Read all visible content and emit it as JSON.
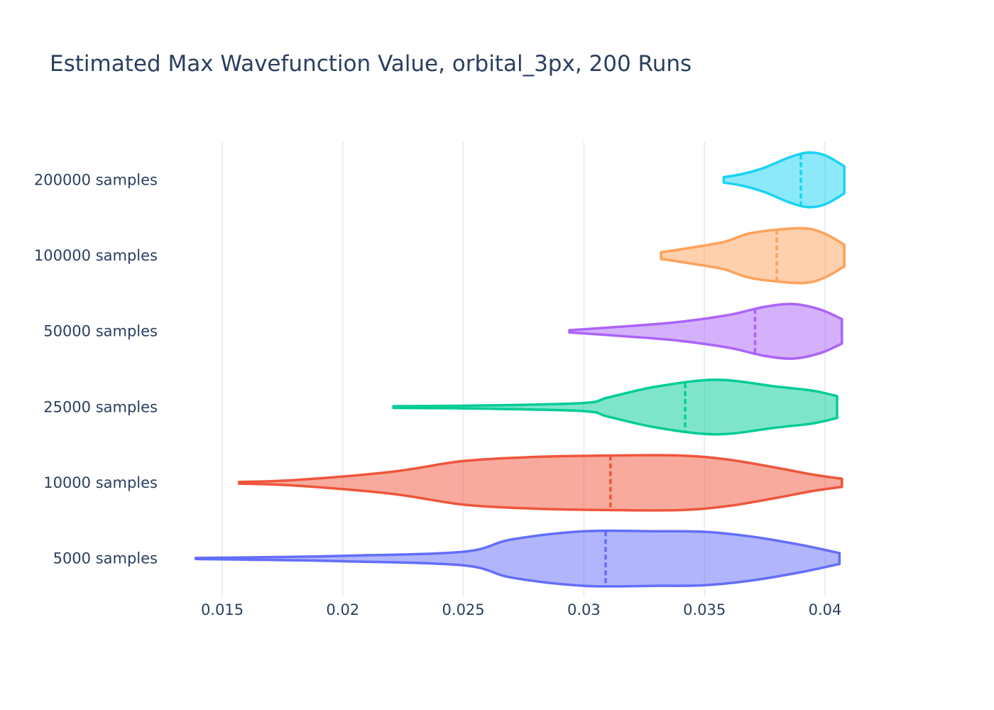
{
  "chart_data": {
    "type": "violin",
    "orientation": "horizontal",
    "title": "Estimated Max Wavefunction Value, orbital_3px, 200 Runs",
    "xlabel": "",
    "ylabel": "",
    "xlim": [
      0.0138,
      0.0415
    ],
    "x_ticks": [
      0.015,
      0.02,
      0.025,
      0.03,
      0.035,
      0.04
    ],
    "x_tick_labels": [
      "0.015",
      "0.02",
      "0.025",
      "0.03",
      "0.035",
      "0.04"
    ],
    "grid": true,
    "legend": "none",
    "categories": [
      "5000 samples",
      "10000 samples",
      "25000 samples",
      "50000 samples",
      "100000 samples",
      "200000 samples"
    ],
    "series": [
      {
        "category": "5000 samples",
        "color": "#636efa",
        "fill": "rgba(99,110,250,0.5)",
        "min": 0.0139,
        "max": 0.0406,
        "median": 0.0309,
        "profile_x": [
          0.0139,
          0.016,
          0.02,
          0.025,
          0.027,
          0.03,
          0.033,
          0.035,
          0.037,
          0.039,
          0.0406
        ],
        "profile_w": [
          0.02,
          0.04,
          0.1,
          0.25,
          0.7,
          1.0,
          1.0,
          0.98,
          0.8,
          0.5,
          0.2
        ]
      },
      {
        "category": "10000 samples",
        "color": "#ef553b",
        "fill": "rgba(239,85,59,0.5)",
        "min": 0.0157,
        "max": 0.0407,
        "median": 0.0311,
        "profile_x": [
          0.0157,
          0.018,
          0.022,
          0.025,
          0.028,
          0.031,
          0.034,
          0.036,
          0.038,
          0.0395,
          0.0407
        ],
        "profile_w": [
          0.03,
          0.1,
          0.4,
          0.8,
          0.95,
          1.0,
          1.0,
          0.85,
          0.55,
          0.3,
          0.15
        ]
      },
      {
        "category": "25000 samples",
        "color": "#00cc96",
        "fill": "rgba(0,204,150,0.5)",
        "min": 0.0221,
        "max": 0.0405,
        "median": 0.0342,
        "profile_x": [
          0.0221,
          0.026,
          0.03,
          0.031,
          0.033,
          0.0355,
          0.038,
          0.0395,
          0.0405
        ],
        "profile_w": [
          0.03,
          0.06,
          0.15,
          0.35,
          0.75,
          1.0,
          0.75,
          0.6,
          0.4
        ]
      },
      {
        "category": "50000 samples",
        "color": "#ab63fa",
        "fill": "rgba(171,99,250,0.5)",
        "min": 0.0294,
        "max": 0.0407,
        "median": 0.0371,
        "profile_x": [
          0.0294,
          0.032,
          0.034,
          0.036,
          0.0375,
          0.0387,
          0.0398,
          0.0407
        ],
        "profile_w": [
          0.04,
          0.2,
          0.35,
          0.6,
          0.9,
          1.0,
          0.8,
          0.45
        ]
      },
      {
        "category": "100000 samples",
        "color": "#ffa15a",
        "fill": "rgba(255,161,90,0.5)",
        "min": 0.0332,
        "max": 0.0408,
        "median": 0.038,
        "profile_x": [
          0.0332,
          0.0345,
          0.0358,
          0.0368,
          0.038,
          0.0392,
          0.04,
          0.0408
        ],
        "profile_w": [
          0.12,
          0.3,
          0.5,
          0.8,
          0.95,
          1.0,
          0.8,
          0.4
        ]
      },
      {
        "category": "200000 samples",
        "color": "#19d3f3",
        "fill": "rgba(25,211,243,0.5)",
        "min": 0.0358,
        "max": 0.0408,
        "median": 0.039,
        "profile_x": [
          0.0358,
          0.0366,
          0.0375,
          0.0385,
          0.0393,
          0.04,
          0.0408
        ],
        "profile_w": [
          0.1,
          0.22,
          0.45,
          0.82,
          1.0,
          0.9,
          0.5
        ]
      }
    ]
  }
}
